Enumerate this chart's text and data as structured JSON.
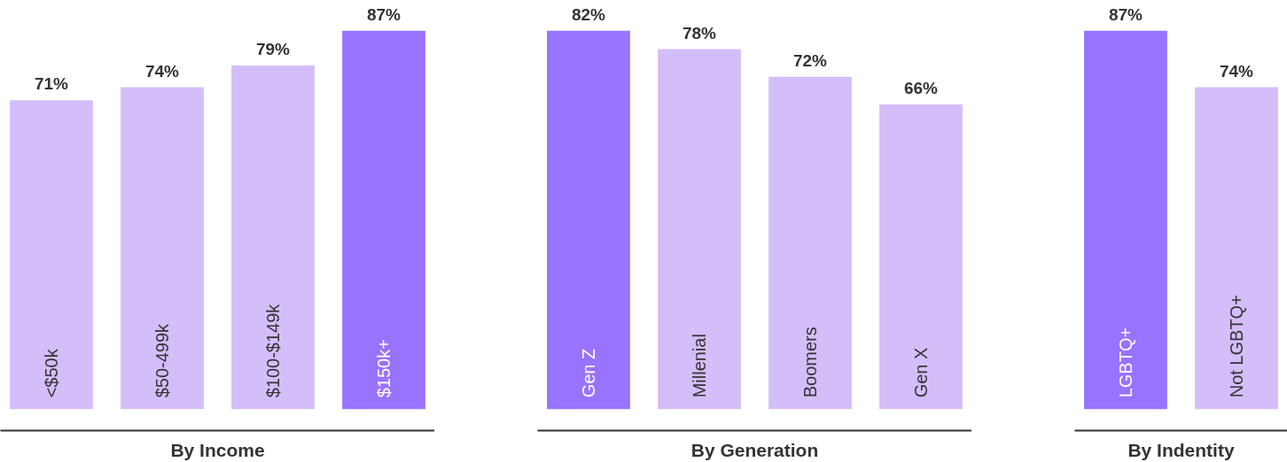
{
  "chart_data": [
    {
      "type": "bar",
      "xlabel": "By Income",
      "categories": [
        "<$50k",
        "$50-499k",
        "$100-$149k",
        "$150k+"
      ],
      "values": [
        71,
        74,
        79,
        87
      ],
      "colors": [
        "#d3befa",
        "#d3befa",
        "#d3befa",
        "#9873fd"
      ],
      "value_labels": [
        "71%",
        "74%",
        "79%",
        "87%"
      ]
    },
    {
      "type": "bar",
      "xlabel": "By Generation",
      "categories": [
        "Gen Z",
        "Millenial",
        "Boomers",
        "Gen X"
      ],
      "values": [
        82,
        78,
        72,
        66
      ],
      "colors": [
        "#9873fd",
        "#d3befa",
        "#d3befa",
        "#d3befa"
      ],
      "value_labels": [
        "82%",
        "78%",
        "72%",
        "66%"
      ]
    },
    {
      "type": "bar",
      "xlabel": "By Indentity",
      "categories": [
        "LGBTQ+",
        "Not LGBTQ+"
      ],
      "values": [
        87,
        74
      ],
      "colors": [
        "#9873fd",
        "#d3befa"
      ],
      "value_labels": [
        "87%",
        "74%"
      ]
    }
  ]
}
